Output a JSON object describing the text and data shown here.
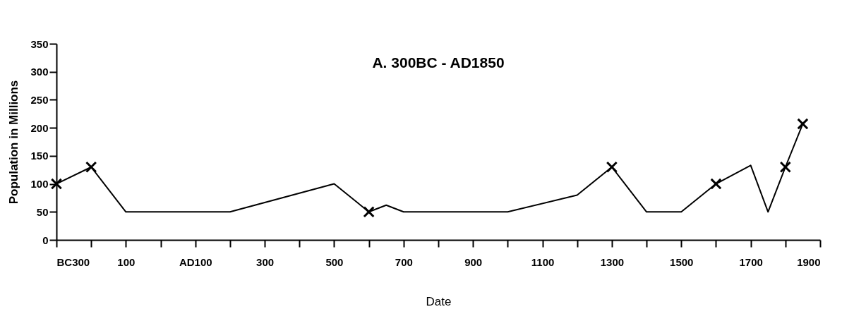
{
  "chart_data": {
    "type": "line",
    "title": "A. 300BC - AD1850",
    "xlabel": "Date",
    "ylabel": "Population in Millions",
    "xlim": [
      -300,
      1900
    ],
    "ylim": [
      0,
      350
    ],
    "xticks": [
      {
        "value": -300,
        "label": "BC300"
      },
      {
        "value": -200,
        "label": null
      },
      {
        "value": -100,
        "label": "100"
      },
      {
        "value": 0,
        "label": null
      },
      {
        "value": 100,
        "label": "AD100"
      },
      {
        "value": 200,
        "label": null
      },
      300,
      {
        "value": 400,
        "label": null
      },
      500,
      {
        "value": 600,
        "label": null
      },
      700,
      {
        "value": 800,
        "label": null
      },
      900,
      {
        "value": 1000,
        "label": null
      },
      1100,
      {
        "value": 1200,
        "label": null
      },
      1300,
      {
        "value": 1400,
        "label": null
      },
      1500,
      {
        "value": 1600,
        "label": null
      },
      1700,
      {
        "value": 1800,
        "label": null
      },
      1900
    ],
    "yticks": [
      0,
      50,
      100,
      150,
      200,
      250,
      300,
      350
    ],
    "grid": false,
    "series": [
      {
        "type": "line",
        "marker": "none",
        "color": "#000000",
        "x": [
          -300,
          -200,
          -100,
          200,
          500,
          600,
          650,
          700,
          1000,
          1200,
          1300,
          1400,
          1500,
          1600,
          1700,
          1750,
          1800,
          1850
        ],
        "values": [
          100,
          130,
          50,
          50,
          100,
          50,
          62,
          50,
          50,
          80,
          130,
          50,
          50,
          100,
          133,
          50,
          130,
          207
        ]
      },
      {
        "type": "scatter",
        "marker": "cross",
        "color": "#000000",
        "x": [
          -300,
          -200,
          600,
          1300,
          1600,
          1800,
          1850
        ],
        "values": [
          100,
          130,
          50,
          130,
          100,
          130,
          207
        ]
      }
    ]
  }
}
